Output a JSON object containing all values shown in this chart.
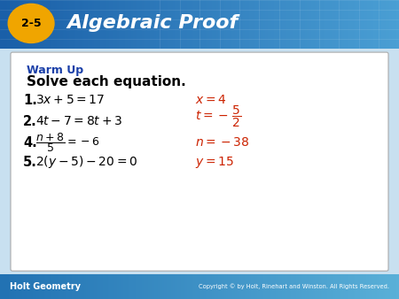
{
  "header_bg_left": "#1a5fa8",
  "header_bg_right": "#4a9fd4",
  "header_text_color": "#ffffff",
  "badge_color": "#f0a500",
  "badge_text": "2-5",
  "title_text": "Algebraic Proof",
  "footer_bg_left": "#2272b3",
  "footer_bg_right": "#5ab0d8",
  "footer_left": "Holt Geometry",
  "footer_right": "Copyright © by Holt, Rinehart and Winston. All Rights Reserved.",
  "warm_up_color": "#1a3fa8",
  "answer_color": "#cc2200",
  "card_bg": "#ffffff",
  "outer_bg": "#c8e0f0",
  "warm_up_label": "Warm Up",
  "subtitle": "Solve each equation."
}
